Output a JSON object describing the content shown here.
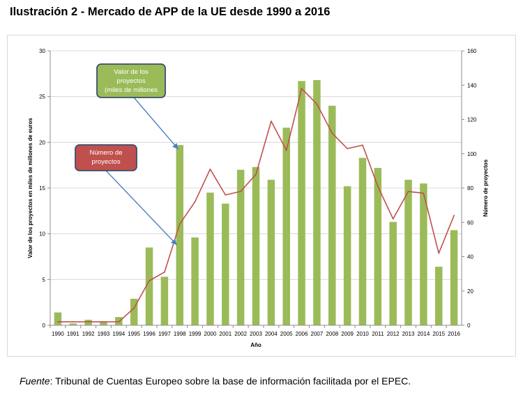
{
  "page_title": "Ilustración 2 - Mercado de APP de la UE desde 1990 a 2016",
  "source_label": "Fuente",
  "source_text": ": Tribunal de Cuentas Europeo sobre la base de información facilitada por el EPEC.",
  "chart_data": {
    "type": "bar",
    "title": "",
    "xlabel": "Año",
    "ylabel": "Valor de los proyectos en miles de millones de euros",
    "y2label": "Número de proyectos",
    "ylim": [
      0,
      30
    ],
    "y2lim": [
      0,
      160
    ],
    "yticks": [
      0,
      5,
      10,
      15,
      20,
      25,
      30
    ],
    "y2ticks": [
      0,
      20,
      40,
      60,
      80,
      100,
      120,
      140,
      160
    ],
    "grid": true,
    "categories": [
      "1990",
      "1991",
      "1992",
      "1993",
      "1994",
      "1995",
      "1996",
      "1997",
      "1998",
      "1999",
      "2000",
      "2001",
      "2002",
      "2003",
      "2004",
      "2005",
      "2006",
      "2007",
      "2008",
      "2009",
      "2010",
      "2011",
      "2012",
      "2013",
      "2014",
      "2015",
      "2016"
    ],
    "series": [
      {
        "name": "Valor de los proyectos (miles de millones",
        "type": "bar",
        "axis": "left",
        "color": "#9bbb59",
        "values": [
          1.4,
          0.2,
          0.6,
          0.4,
          0.9,
          2.9,
          8.5,
          5.3,
          19.7,
          9.6,
          14.5,
          13.3,
          17.0,
          17.3,
          15.9,
          21.6,
          26.7,
          26.8,
          24.0,
          15.2,
          18.3,
          17.2,
          11.3,
          15.9,
          15.5,
          6.4,
          10.4
        ]
      },
      {
        "name": "Número de proyectos",
        "type": "line",
        "axis": "right",
        "color": "#c0504d",
        "values": [
          2,
          2,
          2,
          2,
          2,
          10,
          26,
          31,
          59,
          72,
          91,
          76,
          78,
          88,
          119,
          102,
          138,
          129,
          112,
          103,
          105,
          81,
          62,
          78,
          77,
          42,
          64
        ]
      }
    ],
    "callouts": [
      {
        "text_lines": [
          "Valor de los",
          "proyectos",
          "(miles de millones"
        ],
        "fill": "#9bbb59",
        "points_to": "1998"
      },
      {
        "text_lines": [
          "Número de",
          "proyectos"
        ],
        "fill": "#c0504d",
        "points_to": "1998"
      }
    ]
  }
}
